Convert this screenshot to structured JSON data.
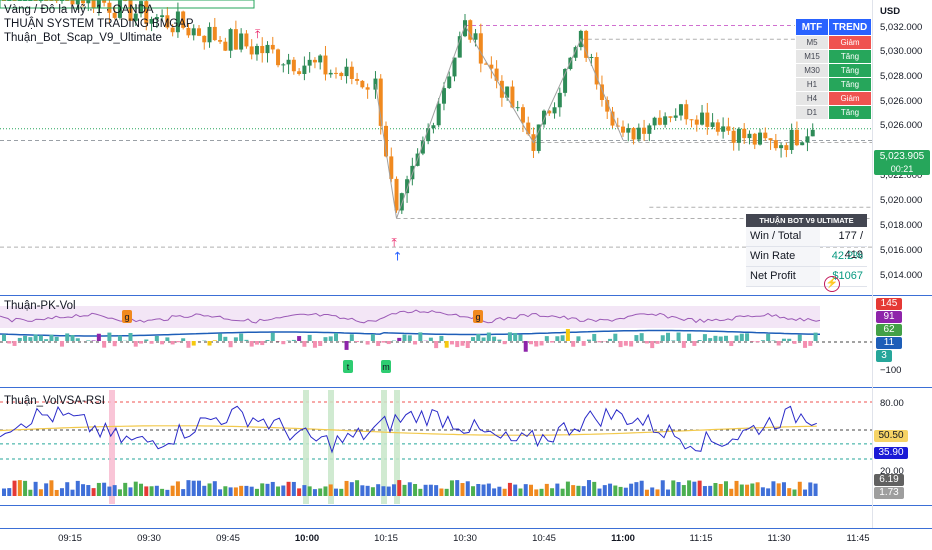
{
  "header": {
    "symbol": "Vàng / Đô la Mỹ · 1 · OANDA",
    "indicator1": "THUẬN SYSTEM TRADING BMGAP",
    "indicator2": "Thuận_Bot_Scap_V9_Ultimate",
    "currency": "USD"
  },
  "mtf": {
    "col1": "MTF",
    "col2": "TREND",
    "rows": [
      {
        "tf": "M5",
        "trend": "Giảm",
        "dir": "down"
      },
      {
        "tf": "M15",
        "trend": "Tăng",
        "dir": "up"
      },
      {
        "tf": "M30",
        "trend": "Tăng",
        "dir": "up"
      },
      {
        "tf": "H1",
        "trend": "Tăng",
        "dir": "up"
      },
      {
        "tf": "H4",
        "trend": "Giảm",
        "dir": "down"
      },
      {
        "tf": "D1",
        "trend": "Tăng",
        "dir": "up"
      }
    ]
  },
  "bot": {
    "title": "THUẬN BOT V9 ULTIMATE",
    "win_total_label": "Win / Total",
    "win_total_value": "177 / 419",
    "win_rate_label": "Win Rate",
    "win_rate_value": "42.2%",
    "net_profit_label": "Net Profit",
    "net_profit_value": "$1067"
  },
  "price_axis": {
    "labels": [
      "5,032.000",
      "5,030.000",
      "5,028.000",
      "5,026.000",
      "5,022.000",
      "5,020.000",
      "5,018.000",
      "5,016.000",
      "5,014.000"
    ],
    "current_price": "5,023.905",
    "countdown": "00:21"
  },
  "pane_pk": {
    "name": "Thuận-PK-Vol",
    "badges": [
      "145",
      "91",
      "62",
      "11",
      "3"
    ],
    "axis_label": "−100",
    "markers": [
      "g",
      "g",
      "t",
      "m"
    ]
  },
  "pane_rsi": {
    "name": "Thuận_VolVSA-RSI",
    "axis_labels": [
      "80.00",
      "20.00"
    ],
    "badges": [
      "50.50",
      "35.90",
      "6.19",
      "1.73"
    ]
  },
  "time_axis": [
    "09:15",
    "09:30",
    "09:45",
    "10:00",
    "10:15",
    "10:30",
    "10:45",
    "11:00",
    "11:15",
    "11:30",
    "11:45"
  ],
  "colors": {
    "bull": "#2e8b57",
    "bear": "#f0891f",
    "rsi": "#2a2ac8",
    "rsi_ma": "#f2c94c",
    "pk_line": "#9b59b6",
    "pk_blue": "#1e5eb8",
    "accent": "#2962ff",
    "up": "#26a65b",
    "down": "#ef5350"
  },
  "chart_data": [
    {
      "type": "candlestick",
      "title": "Vàng / Đô la Mỹ · 1 · OANDA",
      "ylabel": "USD",
      "ylim": [
        5012.5,
        5035.5
      ],
      "x_ticks": [
        "09:15",
        "09:30",
        "09:45",
        "10:00",
        "10:15",
        "10:30",
        "10:45",
        "11:00",
        "11:15",
        "11:30",
        "11:45"
      ],
      "current_price": 5023.905,
      "zigzag": [
        {
          "t": "10:13",
          "price": 5027.5
        },
        {
          "t": "10:17",
          "price": 5016.7
        },
        {
          "t": "10:30",
          "price": 5032.2
        },
        {
          "t": "10:43",
          "price": 5022.8
        },
        {
          "t": "10:52",
          "price": 5031.1
        },
        {
          "t": "11:00",
          "price": 5023.0
        }
      ],
      "levels": [
        5032.2,
        5031.1,
        5022.8,
        5016.7,
        5014.4,
        5017.6
      ]
    },
    {
      "type": "line",
      "title": "Thuận_VolVSA-RSI",
      "ylim": [
        0,
        100
      ],
      "levels": [
        80,
        50.5,
        35.9,
        20
      ],
      "last_values": {
        "rsi": 35.9,
        "rsi_ma": 50.5,
        "vol_a": 6.19,
        "vol_b": 1.73
      }
    },
    {
      "type": "bar",
      "title": "Thuận-PK-Vol",
      "last_values": [
        145,
        91,
        62,
        11,
        3
      ],
      "axis_min": -100
    }
  ]
}
